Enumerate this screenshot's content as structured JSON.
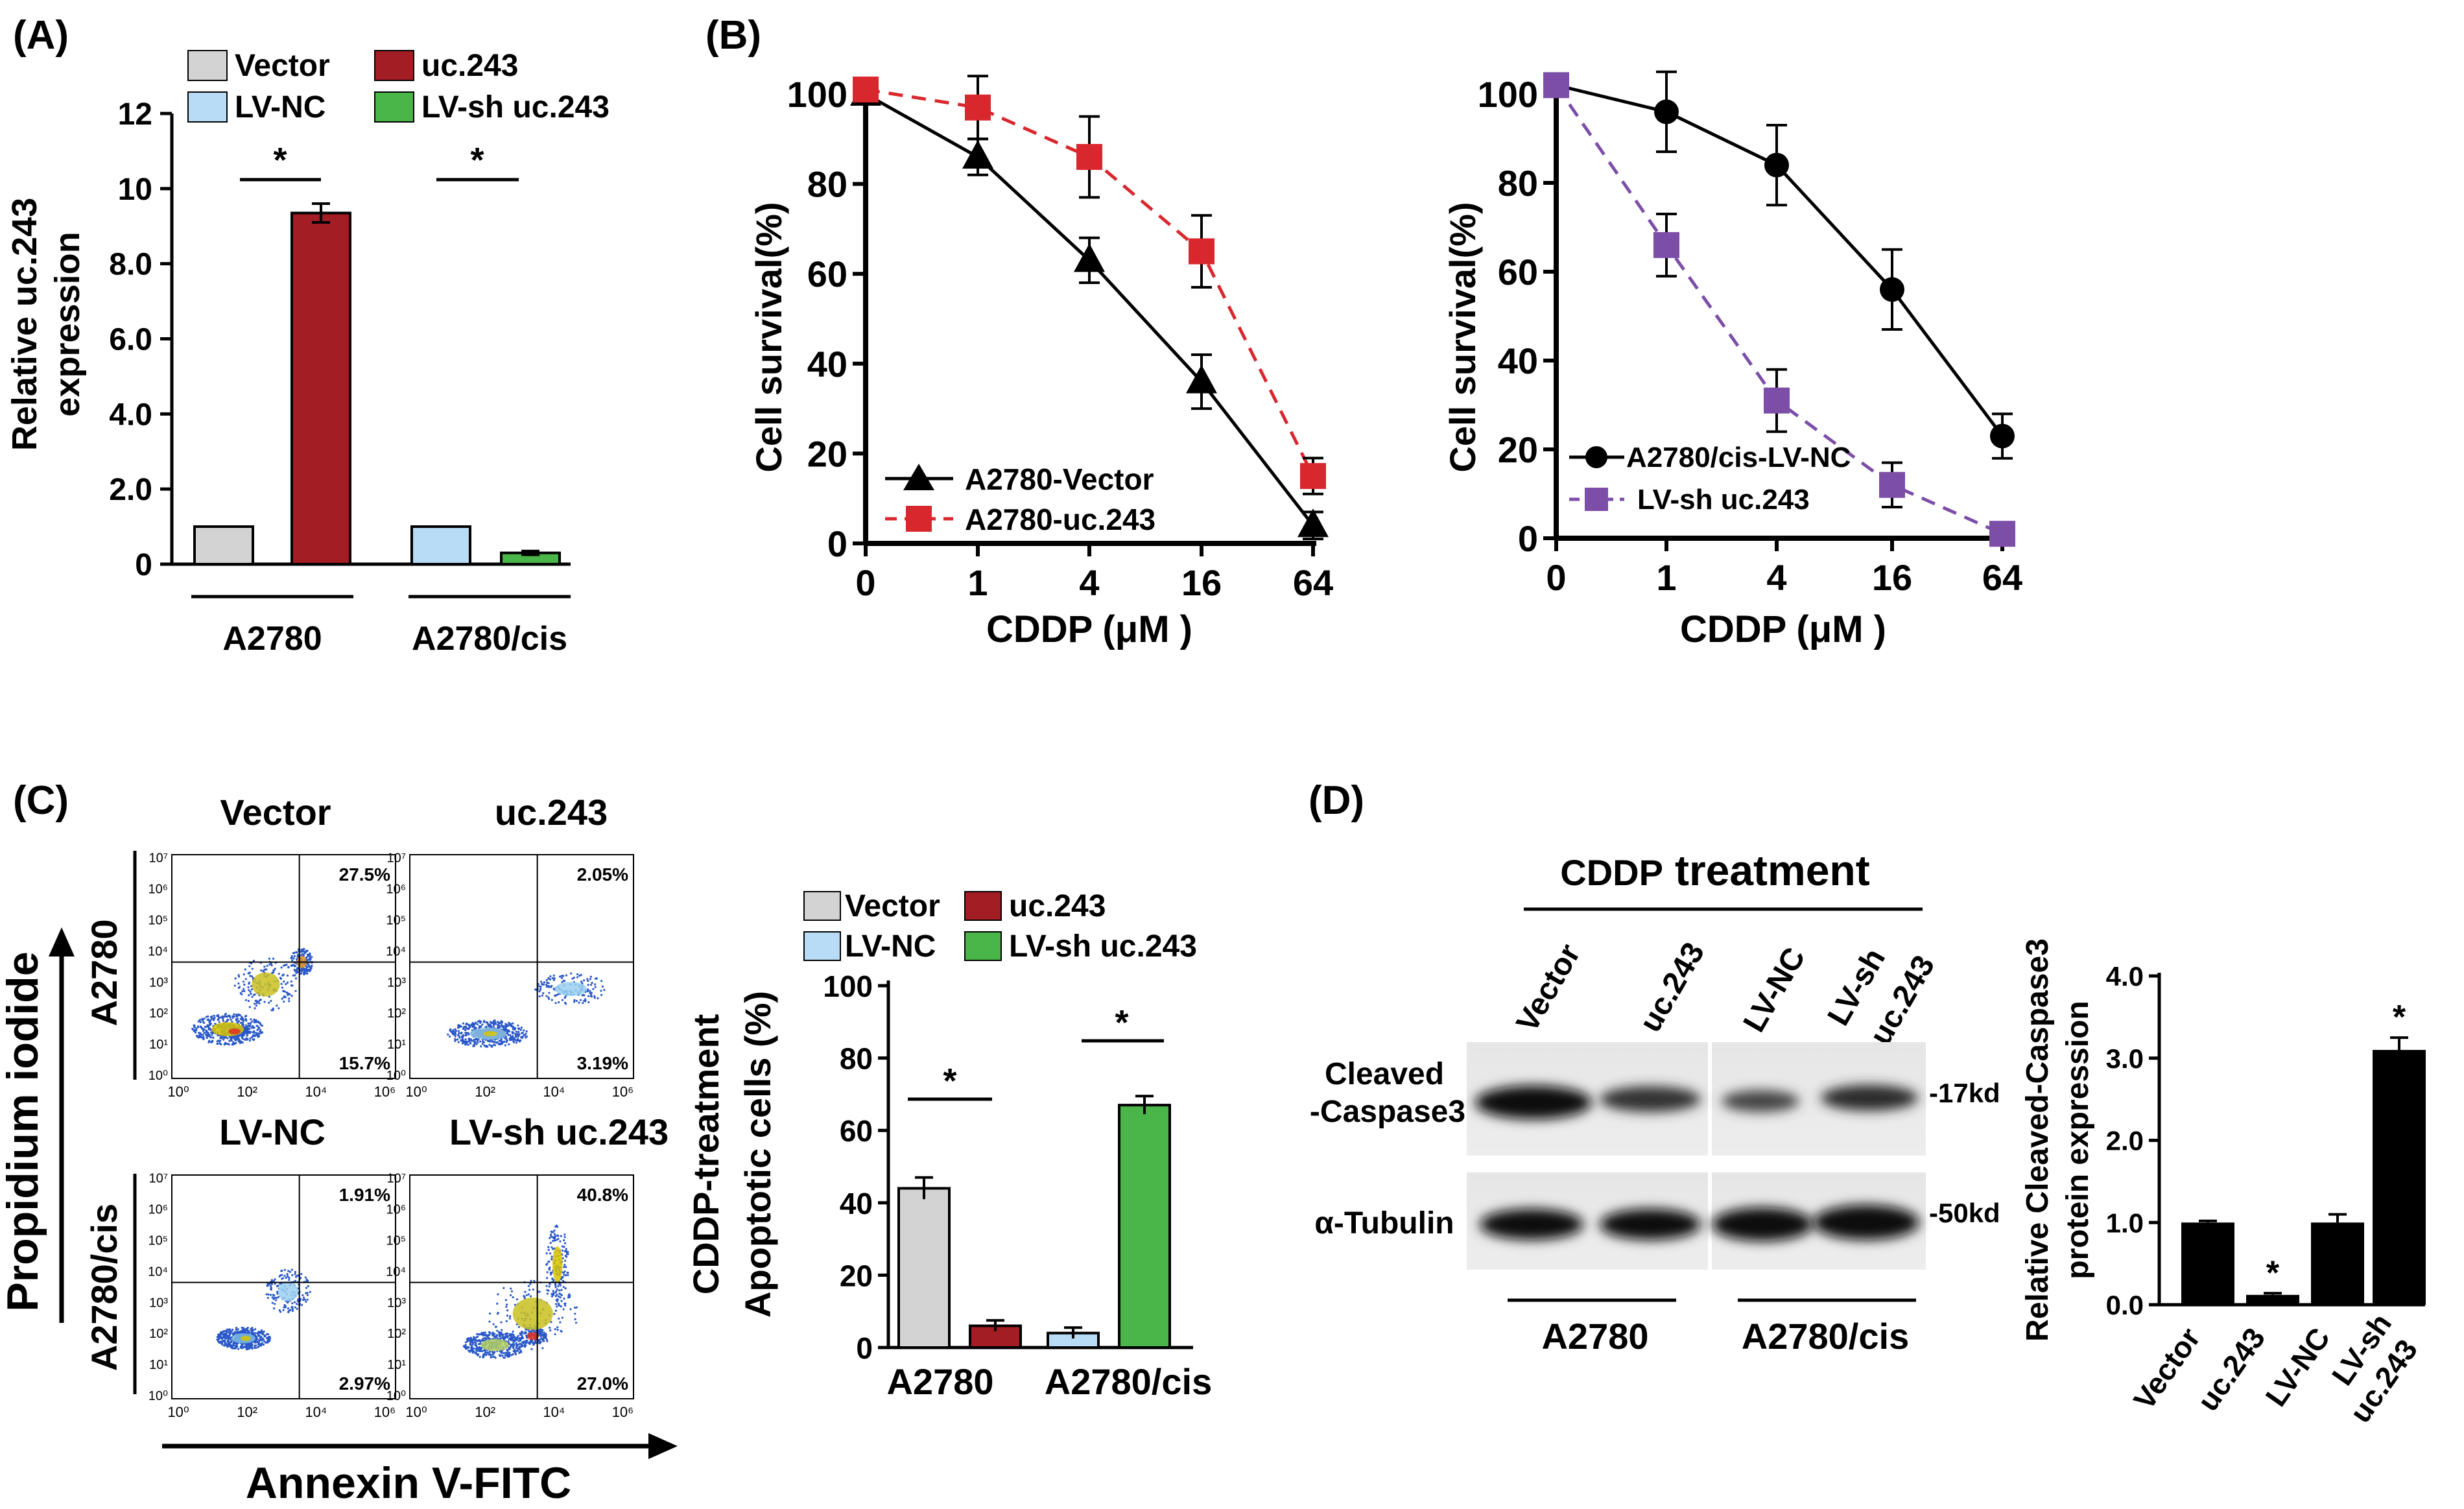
{
  "panels": {
    "A": "(A)",
    "B": "(B)",
    "C": "(C)",
    "D": "(D)"
  },
  "colors": {
    "vector": "#d3d3d3",
    "uc243": "#a31d24",
    "lvnc": "#b8dcf5",
    "lvsh": "#4ab548",
    "red_line": "#d9272e",
    "purple_line": "#7c4ea8",
    "black": "#000000"
  },
  "chart_data": [
    {
      "id": "A",
      "type": "bar",
      "ylabel_lines": [
        "Relative uc.243",
        "expression"
      ],
      "yticks": [
        "0",
        "2.0",
        "4.0",
        "6.0",
        "8.0",
        "10",
        "12"
      ],
      "ylim": [
        0,
        12
      ],
      "legend": [
        "Vector",
        "uc.243",
        "LV-NC",
        "LV-sh uc.243"
      ],
      "groups": [
        "A2780",
        "A2780/cis"
      ],
      "bars": [
        {
          "name": "Vector",
          "value": 1.0,
          "err": 0
        },
        {
          "name": "uc.243",
          "value": 9.35,
          "err": 0.25
        },
        {
          "name": "LV-NC",
          "value": 1.0,
          "err": 0
        },
        {
          "name": "LV-sh uc.243",
          "value": 0.3,
          "err": 0.05
        }
      ],
      "significance": [
        "*",
        "*"
      ]
    },
    {
      "id": "B1",
      "type": "line",
      "ylabel": "Cell survival(%)",
      "xlabel": "CDDP (μM )",
      "xticks": [
        "0",
        "1",
        "4",
        "16",
        "64"
      ],
      "yticks": [
        "0",
        "20",
        "40",
        "60",
        "80",
        "100"
      ],
      "ylim": [
        0,
        100
      ],
      "series": [
        {
          "name": "A2780-Vector",
          "values": [
            100,
            86,
            63,
            36,
            4
          ],
          "err": [
            0,
            4,
            5,
            6,
            3
          ]
        },
        {
          "name": "A2780-uc.243",
          "values": [
            101,
            97,
            86,
            65,
            15
          ],
          "err": [
            0,
            7,
            9,
            8,
            4
          ]
        }
      ]
    },
    {
      "id": "B2",
      "type": "line",
      "ylabel": "Cell survival(%)",
      "xlabel": "CDDP (μM )",
      "xticks": [
        "0",
        "1",
        "4",
        "16",
        "64"
      ],
      "yticks": [
        "0",
        "20",
        "40",
        "60",
        "80",
        "100"
      ],
      "ylim": [
        0,
        100
      ],
      "series": [
        {
          "name": "A2780/cis-LV-NC",
          "values": [
            102,
            96,
            84,
            56,
            23
          ],
          "err": [
            0,
            9,
            9,
            9,
            5
          ]
        },
        {
          "name": "LV-sh uc.243",
          "values": [
            102,
            66,
            31,
            12,
            1
          ],
          "err": [
            0,
            7,
            7,
            5,
            2
          ]
        }
      ]
    },
    {
      "id": "C",
      "type": "bar",
      "ylabel_lines": [
        "CDDP-treatment",
        "Apoptotic cells (%)"
      ],
      "yticks": [
        "0",
        "20",
        "40",
        "60",
        "80",
        "100"
      ],
      "ylim": [
        0,
        100
      ],
      "legend": [
        "Vector",
        "uc.243",
        "LV-NC",
        "LV-sh uc.243"
      ],
      "groups": [
        "A2780",
        "A2780/cis"
      ],
      "bars": [
        {
          "name": "Vector",
          "value": 44,
          "err": 3
        },
        {
          "name": "uc.243",
          "value": 6,
          "err": 1.5
        },
        {
          "name": "LV-NC",
          "value": 4,
          "err": 1.5
        },
        {
          "name": "LV-sh uc.243",
          "value": 67,
          "err": 2.5
        }
      ],
      "significance": [
        "*",
        "*"
      ]
    },
    {
      "id": "D",
      "type": "bar",
      "ylabel_lines": [
        "Relative Cleaved-Caspase3",
        "protein expression"
      ],
      "yticks": [
        "0.0",
        "1.0",
        "2.0",
        "3.0",
        "4.0"
      ],
      "ylim": [
        0,
        4
      ],
      "categories": [
        "Vector",
        "uc.243",
        "LV-NC",
        "LV-sh uc.243"
      ],
      "category_lines": [
        [
          "Vector"
        ],
        [
          "uc.243"
        ],
        [
          "LV-NC"
        ],
        [
          "LV-sh",
          "uc.243"
        ]
      ],
      "values": [
        1.0,
        0.12,
        1.0,
        3.1
      ],
      "err": [
        0.02,
        0.02,
        0.1,
        0.15
      ],
      "significance": [
        "",
        "*",
        "",
        "*"
      ]
    }
  ],
  "flow": {
    "column_titles": [
      "Vector",
      "uc.243"
    ],
    "row2_titles": [
      "LV-NC",
      "LV-sh uc.243"
    ],
    "row_labels": [
      "A2780",
      "A2780/cis"
    ],
    "y_axis_label": "Propidium iodide",
    "x_axis_label": "Annexin V-FITC",
    "y_ticks": [
      "10⁰",
      "10¹",
      "10²",
      "10³",
      "10⁴",
      "10⁵",
      "10⁶",
      "10⁷"
    ],
    "x_ticks": [
      "10⁰",
      "10²",
      "10⁴",
      "10⁶"
    ],
    "plots": [
      {
        "upper_right": "27.5%",
        "lower_right": "15.7%"
      },
      {
        "upper_right": "2.05%",
        "lower_right": "3.19%"
      },
      {
        "upper_right": "1.91%",
        "lower_right": "2.97%"
      },
      {
        "upper_right": "40.8%",
        "lower_right": "27.0%"
      }
    ]
  },
  "blot": {
    "title_prefix": "CDDP",
    "title_suffix": "treatment",
    "lanes": [
      "Vector",
      "uc.243",
      "LV-NC",
      "LV-sh uc.243"
    ],
    "lane_lines": [
      [
        "Vector"
      ],
      [
        "uc.243"
      ],
      [
        "LV-NC"
      ],
      [
        "LV-sh",
        "uc.243"
      ]
    ],
    "row_labels": [
      "Cleaved",
      "-Caspase3",
      "α-Tubulin"
    ],
    "markers": [
      "-17kd",
      "-50kd"
    ],
    "groups": [
      "A2780",
      "A2780/cis"
    ]
  }
}
